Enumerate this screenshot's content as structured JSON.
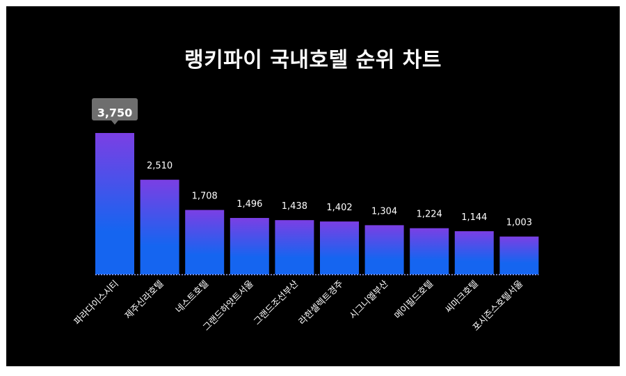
{
  "title": "랭키파이 국내호텔 순위 차트",
  "colors": {
    "background": "#000000",
    "bar_top": "#7b3fe4",
    "bar_bottom": "#1565f0",
    "tooltip": "#6e6e6e",
    "baseline": "#9aa9ff"
  },
  "chart_data": {
    "type": "bar",
    "title": "랭키파이 국내호텔 순위 차트",
    "categories": [
      "파라다이스시티",
      "제주신라호텔",
      "네스트호텔",
      "그랜드하얏트서울",
      "그랜드조선부산",
      "라한셀렉트경주",
      "시그니엘부산",
      "메이필드호텔",
      "씨마크호텔",
      "포시즌스호텔서울"
    ],
    "values": [
      3750,
      2510,
      1708,
      1496,
      1438,
      1402,
      1304,
      1224,
      1144,
      1003
    ],
    "value_labels": [
      "3,750",
      "2,510",
      "1,708",
      "1,496",
      "1,438",
      "1,402",
      "1,304",
      "1,224",
      "1,144",
      "1,003"
    ],
    "highlighted_index": 0,
    "xlabel": "",
    "ylabel": "",
    "ylim": [
      0,
      3750
    ],
    "grid": false,
    "legend": "none"
  }
}
